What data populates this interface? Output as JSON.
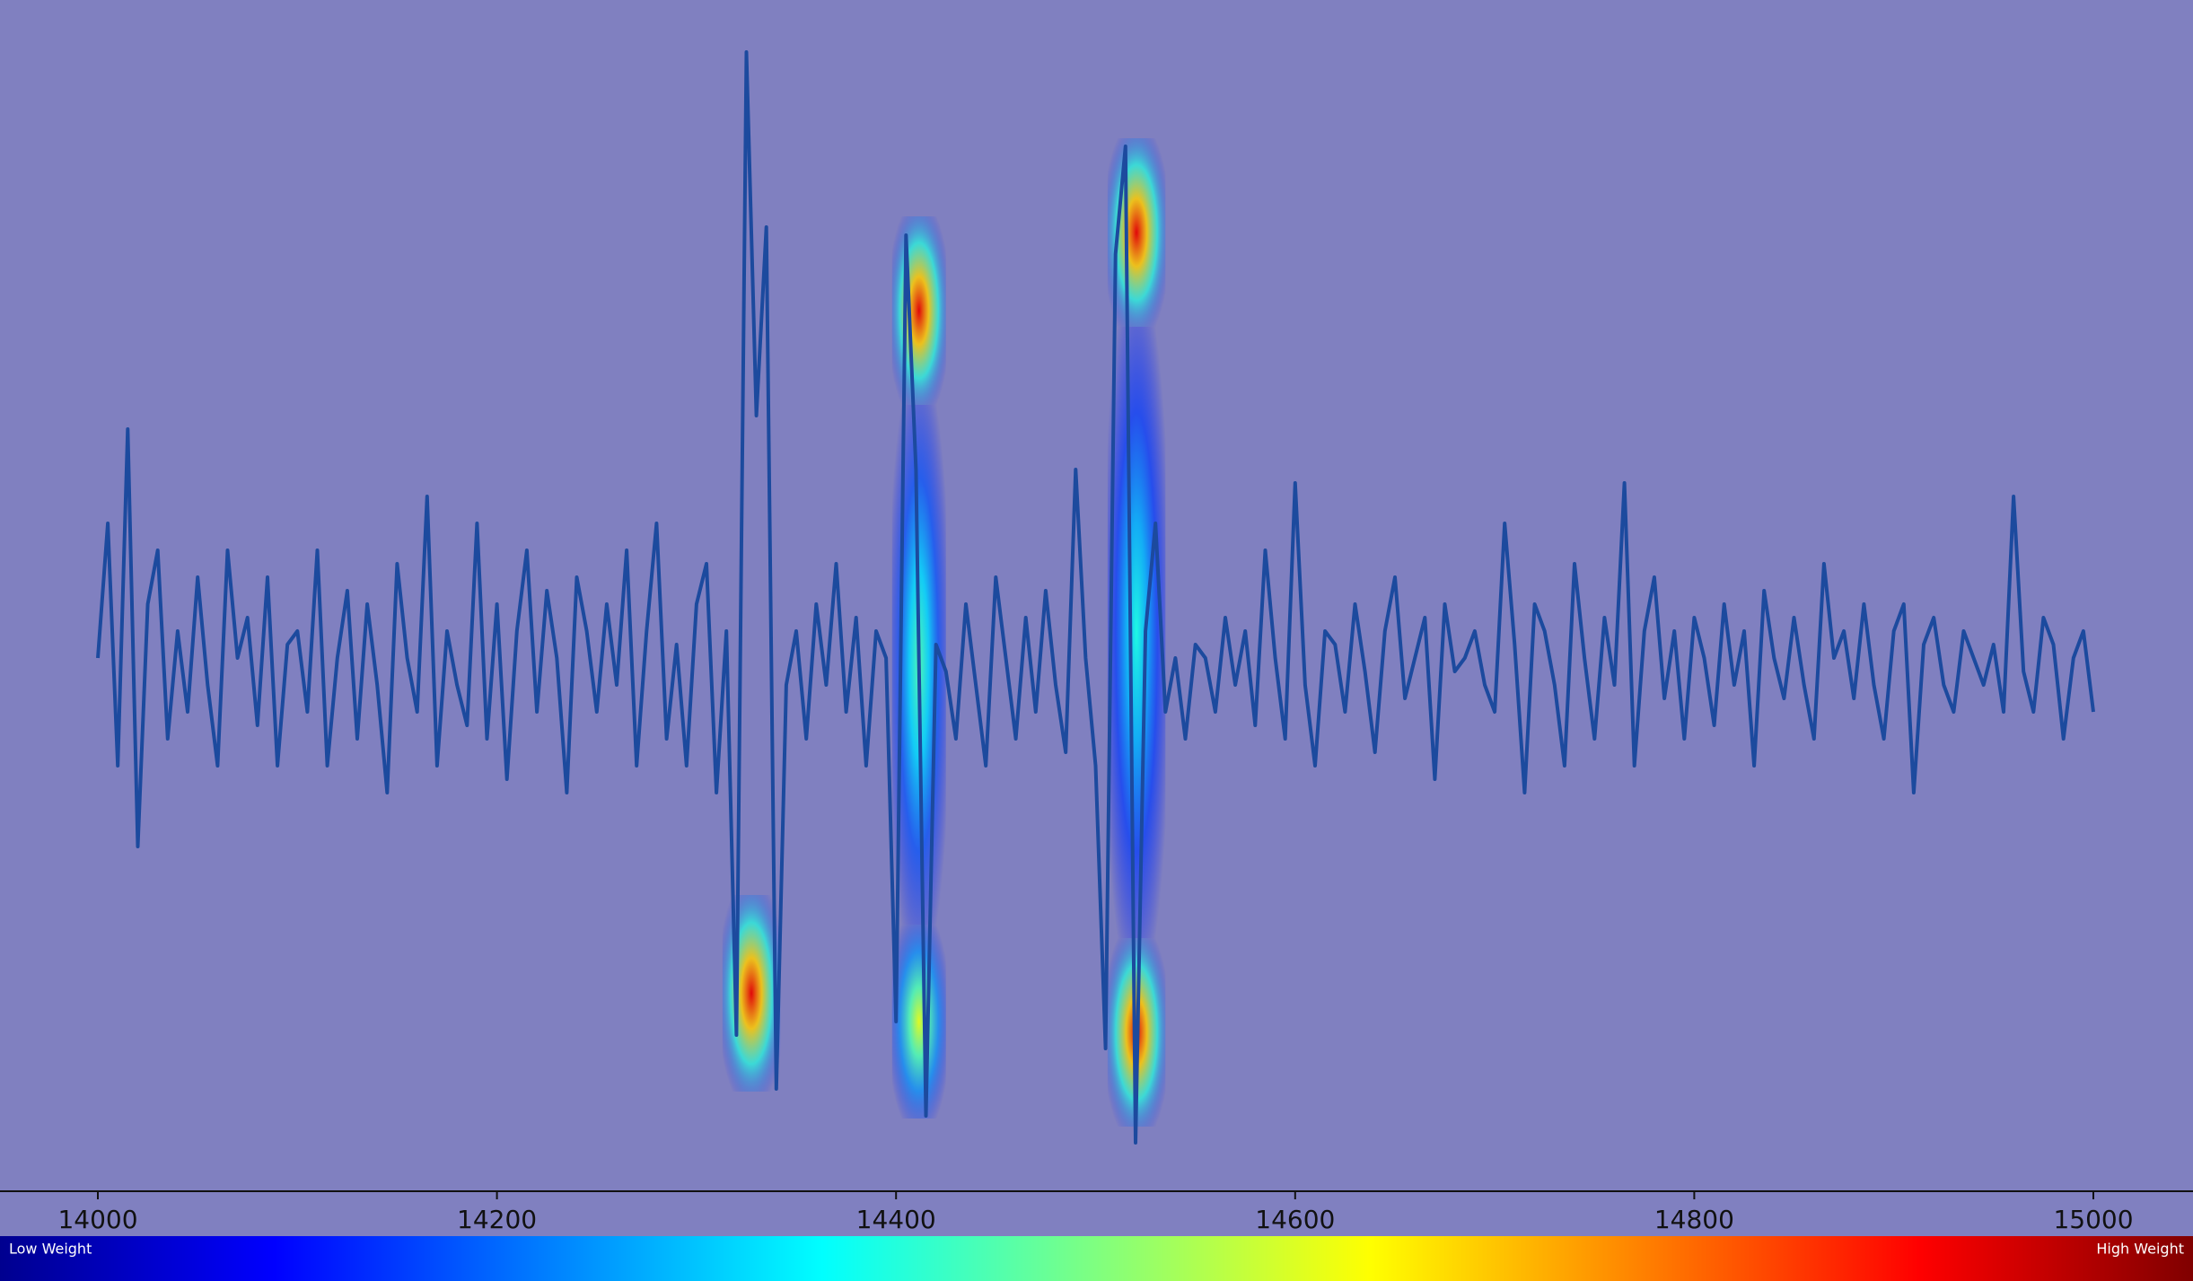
{
  "chart_data": {
    "type": "line",
    "x": [
      14000,
      14005,
      14010,
      14015,
      14020,
      14025,
      14030,
      14035,
      14040,
      14045,
      14050,
      14055,
      14060,
      14065,
      14070,
      14075,
      14080,
      14085,
      14090,
      14095,
      14100,
      14105,
      14110,
      14115,
      14120,
      14125,
      14130,
      14135,
      14140,
      14145,
      14150,
      14155,
      14160,
      14165,
      14170,
      14175,
      14180,
      14185,
      14190,
      14195,
      14200,
      14205,
      14210,
      14215,
      14220,
      14225,
      14230,
      14235,
      14240,
      14245,
      14250,
      14255,
      14260,
      14265,
      14270,
      14275,
      14280,
      14285,
      14290,
      14295,
      14300,
      14305,
      14310,
      14315,
      14320,
      14325,
      14330,
      14335,
      14340,
      14345,
      14350,
      14355,
      14360,
      14365,
      14370,
      14375,
      14380,
      14385,
      14390,
      14395,
      14400,
      14405,
      14410,
      14415,
      14420,
      14425,
      14430,
      14435,
      14440,
      14445,
      14450,
      14455,
      14460,
      14465,
      14470,
      14475,
      14480,
      14485,
      14490,
      14495,
      14500,
      14505,
      14510,
      14515,
      14520,
      14525,
      14530,
      14535,
      14540,
      14545,
      14550,
      14555,
      14560,
      14565,
      14570,
      14575,
      14580,
      14585,
      14590,
      14595,
      14600,
      14605,
      14610,
      14615,
      14620,
      14625,
      14630,
      14635,
      14640,
      14645,
      14650,
      14655,
      14660,
      14665,
      14670,
      14675,
      14680,
      14685,
      14690,
      14695,
      14700,
      14705,
      14710,
      14715,
      14720,
      14725,
      14730,
      14735,
      14740,
      14745,
      14750,
      14755,
      14760,
      14765,
      14770,
      14775,
      14780,
      14785,
      14790,
      14795,
      14800,
      14805,
      14810,
      14815,
      14820,
      14825,
      14830,
      14835,
      14840,
      14845,
      14850,
      14855,
      14860,
      14865,
      14870,
      14875,
      14880,
      14885,
      14890,
      14895,
      14900,
      14905,
      14910,
      14915,
      14920,
      14925,
      14930,
      14935,
      14940,
      14945,
      14950,
      14955,
      14960,
      14965,
      14970,
      14975,
      14980,
      14985,
      14990,
      14995,
      15000
    ],
    "series": [
      {
        "color": "#1c4a9e",
        "values": [
          0.1,
          0.6,
          -0.3,
          0.95,
          -0.6,
          0.3,
          0.5,
          -0.2,
          0.2,
          -0.1,
          0.4,
          0.0,
          -0.3,
          0.5,
          0.1,
          0.25,
          -0.15,
          0.4,
          -0.3,
          0.15,
          0.2,
          -0.1,
          0.5,
          -0.3,
          0.1,
          0.35,
          -0.2,
          0.3,
          0.0,
          -0.4,
          0.45,
          0.1,
          -0.1,
          0.7,
          -0.3,
          0.2,
          0.0,
          -0.15,
          0.6,
          -0.2,
          0.3,
          -0.35,
          0.2,
          0.5,
          -0.1,
          0.35,
          0.1,
          -0.4,
          0.4,
          0.2,
          -0.1,
          0.3,
          0.0,
          0.5,
          -0.3,
          0.2,
          0.6,
          -0.2,
          0.15,
          -0.3,
          0.3,
          0.45,
          -0.4,
          0.2,
          -1.3,
          2.35,
          1.0,
          1.7,
          -1.5,
          0.0,
          0.2,
          -0.2,
          0.3,
          0.0,
          0.45,
          -0.1,
          0.25,
          -0.3,
          0.2,
          0.1,
          -1.25,
          1.67,
          0.8,
          -1.6,
          0.15,
          0.05,
          -0.2,
          0.3,
          0.0,
          -0.3,
          0.4,
          0.1,
          -0.2,
          0.25,
          -0.1,
          0.35,
          0.0,
          -0.25,
          0.8,
          0.1,
          -0.3,
          -1.35,
          1.6,
          2.0,
          -1.7,
          0.2,
          0.6,
          -0.1,
          0.1,
          -0.2,
          0.15,
          0.1,
          -0.1,
          0.25,
          0.0,
          0.2,
          -0.15,
          0.5,
          0.1,
          -0.2,
          0.75,
          0.0,
          -0.3,
          0.2,
          0.15,
          -0.1,
          0.3,
          0.05,
          -0.25,
          0.2,
          0.4,
          -0.05,
          0.1,
          0.25,
          -0.35,
          0.3,
          0.05,
          0.1,
          0.2,
          0.0,
          -0.1,
          0.6,
          0.15,
          -0.4,
          0.3,
          0.2,
          0.0,
          -0.3,
          0.45,
          0.1,
          -0.2,
          0.25,
          0.0,
          0.75,
          -0.3,
          0.2,
          0.4,
          -0.05,
          0.2,
          -0.2,
          0.25,
          0.1,
          -0.15,
          0.3,
          0.0,
          0.2,
          -0.3,
          0.35,
          0.1,
          -0.05,
          0.25,
          0.0,
          -0.2,
          0.45,
          0.1,
          0.2,
          -0.05,
          0.3,
          0.0,
          -0.2,
          0.2,
          0.3,
          -0.4,
          0.15,
          0.25,
          0.0,
          -0.1,
          0.2,
          0.1,
          0.0,
          0.15,
          -0.1,
          0.7,
          0.05,
          -0.1,
          0.25,
          0.15,
          -0.2,
          0.1,
          0.2,
          -0.1
        ]
      }
    ],
    "highlights": [
      {
        "x": [
          14313,
          14342
        ],
        "y": [
          -1.51,
          -0.78
        ],
        "weight": 0.9
      },
      {
        "x": [
          14398,
          14425
        ],
        "y": [
          1.04,
          1.74
        ],
        "weight": 0.9
      },
      {
        "x": [
          14398,
          14425
        ],
        "y": [
          -0.89,
          1.04
        ],
        "weight": 0.45
      },
      {
        "x": [
          14398,
          14425
        ],
        "y": [
          -1.61,
          -0.89
        ],
        "weight": 0.6
      },
      {
        "x": [
          14506,
          14535
        ],
        "y": [
          1.33,
          2.03
        ],
        "weight": 0.9
      },
      {
        "x": [
          14506,
          14535
        ],
        "y": [
          -0.94,
          1.33
        ],
        "weight": 0.4
      },
      {
        "x": [
          14506,
          14535
        ],
        "y": [
          -1.64,
          -0.94
        ],
        "weight": 0.9
      }
    ],
    "xlim": [
      14000,
      15000
    ],
    "ylim": [
      -2,
      2.5
    ],
    "xticks": [
      14000,
      14200,
      14400,
      14600,
      14800,
      15000
    ],
    "colorbar": {
      "low_label": "Low Weight",
      "high_label": "High Weight"
    }
  }
}
